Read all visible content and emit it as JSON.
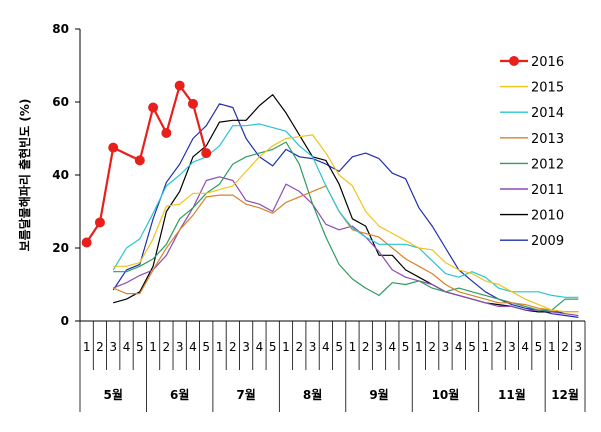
{
  "chart_data": {
    "type": "line",
    "ylabel": "보름달물해파리 출현빈도 (%)",
    "ylim": [
      0,
      80
    ],
    "yticks": [
      0,
      20,
      40,
      60,
      80
    ],
    "x_weeks": [
      "1",
      "2",
      "3",
      "4",
      "5",
      "1",
      "2",
      "3",
      "4",
      "5",
      "1",
      "2",
      "3",
      "4",
      "5",
      "1",
      "2",
      "3",
      "4",
      "5",
      "1",
      "2",
      "3",
      "4",
      "5",
      "1",
      "2",
      "3",
      "4",
      "5",
      "1",
      "2",
      "3",
      "4",
      "5",
      "1",
      "2",
      "3"
    ],
    "months": [
      {
        "label": "5월",
        "start": 0,
        "end": 5
      },
      {
        "label": "6월",
        "start": 5,
        "end": 10
      },
      {
        "label": "7월",
        "start": 10,
        "end": 15
      },
      {
        "label": "8월",
        "start": 15,
        "end": 20
      },
      {
        "label": "9월",
        "start": 20,
        "end": 25
      },
      {
        "label": "10월",
        "start": 25,
        "end": 30
      },
      {
        "label": "11월",
        "start": 30,
        "end": 35
      },
      {
        "label": "12월",
        "start": 35,
        "end": 38
      }
    ],
    "legend_position": "top-right",
    "series": [
      {
        "name": "2016",
        "color": "#e8201c",
        "width": 2.2,
        "markers": true,
        "start": 0,
        "values": [
          21.5,
          27,
          47.5,
          null,
          44,
          58.5,
          51.5,
          64.5,
          59.5,
          46
        ]
      },
      {
        "name": "2015",
        "color": "#f0c419",
        "width": 1.2,
        "start": 2,
        "values": [
          15,
          15,
          16,
          22.5,
          31.5,
          32,
          35,
          35,
          36,
          37,
          41,
          45,
          48,
          50,
          50.5,
          51,
          46,
          40,
          37,
          30,
          26,
          24,
          22,
          20,
          19.5,
          16,
          14,
          13,
          11,
          10,
          8,
          6,
          4.5,
          3,
          2.5,
          2.5
        ]
      },
      {
        "name": "2014",
        "color": "#29c4d4",
        "width": 1.2,
        "start": 2,
        "values": [
          14,
          20,
          22.5,
          29.5,
          37,
          40,
          43.5,
          45,
          48,
          53.5,
          53.5,
          54,
          53,
          52,
          48,
          45,
          37,
          30,
          25.5,
          23,
          21,
          21,
          21,
          20,
          16.5,
          13,
          12,
          13.5,
          12,
          9,
          8,
          8,
          8,
          7,
          6.5,
          6.5
        ]
      },
      {
        "name": "2013",
        "color": "#d9822b",
        "width": 1.2,
        "start": 2,
        "values": [
          9,
          7.5,
          7.5,
          14,
          20,
          25,
          29,
          34,
          34.5,
          34.5,
          32,
          31,
          29.5,
          32.5,
          34,
          35.5,
          37,
          30,
          25,
          24,
          23,
          20,
          17,
          15,
          13,
          10,
          8,
          7,
          6,
          5,
          5,
          4.5,
          3.5,
          3,
          2.5,
          2.5
        ]
      },
      {
        "name": "2012",
        "color": "#2e9c5e",
        "width": 1.2,
        "start": 2,
        "values": [
          13.5,
          13.5,
          15,
          17,
          21,
          28,
          31,
          35,
          37.5,
          43,
          45,
          46,
          47,
          49,
          43,
          32,
          23,
          15.5,
          11.5,
          9,
          7,
          10.5,
          10,
          11,
          9,
          8,
          9,
          8,
          7,
          6,
          5,
          4,
          3,
          3,
          6,
          6
        ]
      },
      {
        "name": "2011",
        "color": "#8e4bb5",
        "width": 1.2,
        "start": 2,
        "values": [
          9,
          10.5,
          12.5,
          14,
          18,
          25,
          31,
          38.5,
          39.5,
          38.5,
          33,
          32,
          30,
          37.5,
          35.5,
          32,
          26.5,
          25,
          26,
          23,
          19,
          14,
          12,
          11,
          10,
          8,
          7,
          6,
          5,
          4,
          4,
          3,
          3,
          2.5,
          2,
          1.5
        ]
      },
      {
        "name": "2010",
        "color": "#000000",
        "width": 1.2,
        "start": 2,
        "values": [
          5,
          6,
          8,
          15,
          30,
          35.5,
          45,
          48,
          54.5,
          55,
          55,
          59,
          62,
          57,
          51,
          45,
          44,
          37.5,
          28,
          26,
          18,
          18,
          14,
          12,
          10,
          8,
          7,
          6,
          5,
          4.5,
          4,
          3,
          2.5,
          2.5,
          2.5,
          2.5
        ]
      },
      {
        "name": "2009",
        "color": "#1f2fb0",
        "width": 1.2,
        "start": 2,
        "values": [
          8.5,
          14,
          15.5,
          28,
          38,
          43,
          50,
          53.5,
          59.5,
          58.5,
          50,
          45,
          42.5,
          47,
          45,
          44.5,
          43,
          41,
          45,
          46,
          44.5,
          40.5,
          39,
          31,
          26,
          20,
          14,
          11,
          8,
          6,
          4.5,
          3.5,
          3,
          2,
          1.5,
          1
        ]
      }
    ]
  }
}
